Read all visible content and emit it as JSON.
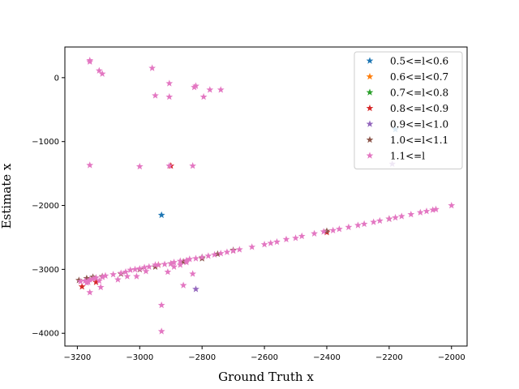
{
  "chart_data": {
    "type": "scatter",
    "title": "",
    "xlabel": "Ground Truth x",
    "ylabel": "Estimate x",
    "xlim": [
      -3240,
      -1950
    ],
    "ylim": [
      -4200,
      480
    ],
    "xticks": [
      -3200,
      -3000,
      -2800,
      -2600,
      -2400,
      -2200,
      -2000
    ],
    "yticks": [
      -4000,
      -3000,
      -2000,
      -1000,
      0
    ],
    "grid": false,
    "legend_position": "top-right",
    "marker": "star",
    "series": [
      {
        "name": "0.5<=l<0.6",
        "color": "#1f77b4",
        "x": [
          -2930,
          -2180
        ],
        "y": [
          -2150,
          -810
        ]
      },
      {
        "name": "0.6<=l<0.7",
        "color": "#ff7f0e",
        "x": [
          -2940
        ],
        "y": [
          -2930
        ]
      },
      {
        "name": "0.7<=l<0.8",
        "color": "#2ca02c",
        "x": [
          -2800
        ],
        "y": [
          -2810
        ]
      },
      {
        "name": "0.8<=l<0.9",
        "color": "#d62728",
        "x": [
          -3185,
          -3140,
          -2900,
          -2400
        ],
        "y": [
          -3270,
          -3200,
          -1380,
          -2420
        ]
      },
      {
        "name": "0.9<=l<1.0",
        "color": "#9467bd",
        "x": [
          -2820,
          -2190
        ],
        "y": [
          -3310,
          -1350
        ]
      },
      {
        "name": "1.0<=l<1.1",
        "color": "#8c564b",
        "x": [
          -3195,
          -3170,
          -3150,
          -3120,
          -3060,
          -3000,
          -2950,
          -2900,
          -2860,
          -2800,
          -2750,
          -2700,
          -2400,
          -2200
        ],
        "y": [
          -3170,
          -3140,
          -3120,
          -3110,
          -3070,
          -3000,
          -2960,
          -2910,
          -2880,
          -2830,
          -2760,
          -2700,
          -2400,
          -2210
        ]
      },
      {
        "name": "1.1<=l",
        "color": "#e377c2",
        "x": [
          -3160,
          -3160,
          -3130,
          -3120,
          -2960,
          -2950,
          -2905,
          -2905,
          -2825,
          -2820,
          -2795,
          -2775,
          -2740,
          -3160,
          -3000,
          -2905,
          -2830,
          -3190,
          -3175,
          -3160,
          -3150,
          -3140,
          -3120,
          -3110,
          -3085,
          -3060,
          -3045,
          -3030,
          -3015,
          -3000,
          -2985,
          -2970,
          -2950,
          -2940,
          -2920,
          -2900,
          -2890,
          -2870,
          -2850,
          -2840,
          -2820,
          -2800,
          -2780,
          -2760,
          -2740,
          -2720,
          -2700,
          -2680,
          -2640,
          -2600,
          -2580,
          -2560,
          -2530,
          -2500,
          -2480,
          -2440,
          -2410,
          -2380,
          -2360,
          -2330,
          -2300,
          -2280,
          -2250,
          -2230,
          -2200,
          -2180,
          -2160,
          -2130,
          -2100,
          -2080,
          -2060,
          -2050,
          -2000,
          -3170,
          -3165,
          -3130,
          -3070,
          -3040,
          -3010,
          -2980,
          -2910,
          -2890,
          -2870,
          -2850,
          -3160,
          -3125,
          -2930,
          -2860,
          -2830,
          -2930
        ],
        "y": [
          250,
          270,
          110,
          60,
          150,
          -280,
          -90,
          -300,
          -150,
          -130,
          -300,
          -190,
          -190,
          -1370,
          -1390,
          -1380,
          -1380,
          -3190,
          -3180,
          -3160,
          -3150,
          -3130,
          -3120,
          -3100,
          -3080,
          -3060,
          -3040,
          -3010,
          -3000,
          -2990,
          -2970,
          -2960,
          -2930,
          -2930,
          -2920,
          -2910,
          -2890,
          -2870,
          -2860,
          -2840,
          -2830,
          -2810,
          -2790,
          -2770,
          -2750,
          -2730,
          -2710,
          -2690,
          -2650,
          -2610,
          -2590,
          -2570,
          -2530,
          -2510,
          -2480,
          -2440,
          -2410,
          -2390,
          -2370,
          -2340,
          -2310,
          -2290,
          -2260,
          -2240,
          -2210,
          -2190,
          -2170,
          -2140,
          -2110,
          -2090,
          -2070,
          -2060,
          -2000,
          -3210,
          -3200,
          -3180,
          -3160,
          -3110,
          -3110,
          -3030,
          -3040,
          -2960,
          -2930,
          -2890,
          -3360,
          -3280,
          -3560,
          -3250,
          -3070,
          -3970
        ]
      }
    ]
  }
}
